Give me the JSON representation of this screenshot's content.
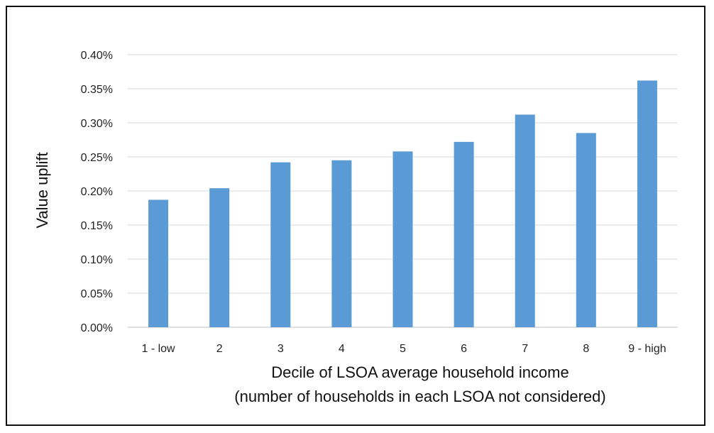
{
  "chart_data": {
    "type": "bar",
    "categories": [
      "1 - low",
      "2",
      "3",
      "4",
      "5",
      "6",
      "7",
      "8",
      "9 - high"
    ],
    "values": [
      0.187,
      0.204,
      0.242,
      0.245,
      0.258,
      0.272,
      0.312,
      0.285,
      0.362
    ],
    "value_unit": "%",
    "ylim": [
      0,
      0.4
    ],
    "yticks": [
      0.0,
      0.05,
      0.1,
      0.15,
      0.2,
      0.25,
      0.3,
      0.35,
      0.4
    ],
    "ytick_labels": [
      "0.00%",
      "0.05%",
      "0.10%",
      "0.15%",
      "0.20%",
      "0.25%",
      "0.30%",
      "0.35%",
      "0.40%"
    ],
    "ylabel": "Value uplift",
    "xlabel_line1": "Decile of LSOA average household income",
    "xlabel_line2": "(number of households in each LSOA not considered)",
    "grid": true,
    "bar_color": "#5b9bd5"
  }
}
